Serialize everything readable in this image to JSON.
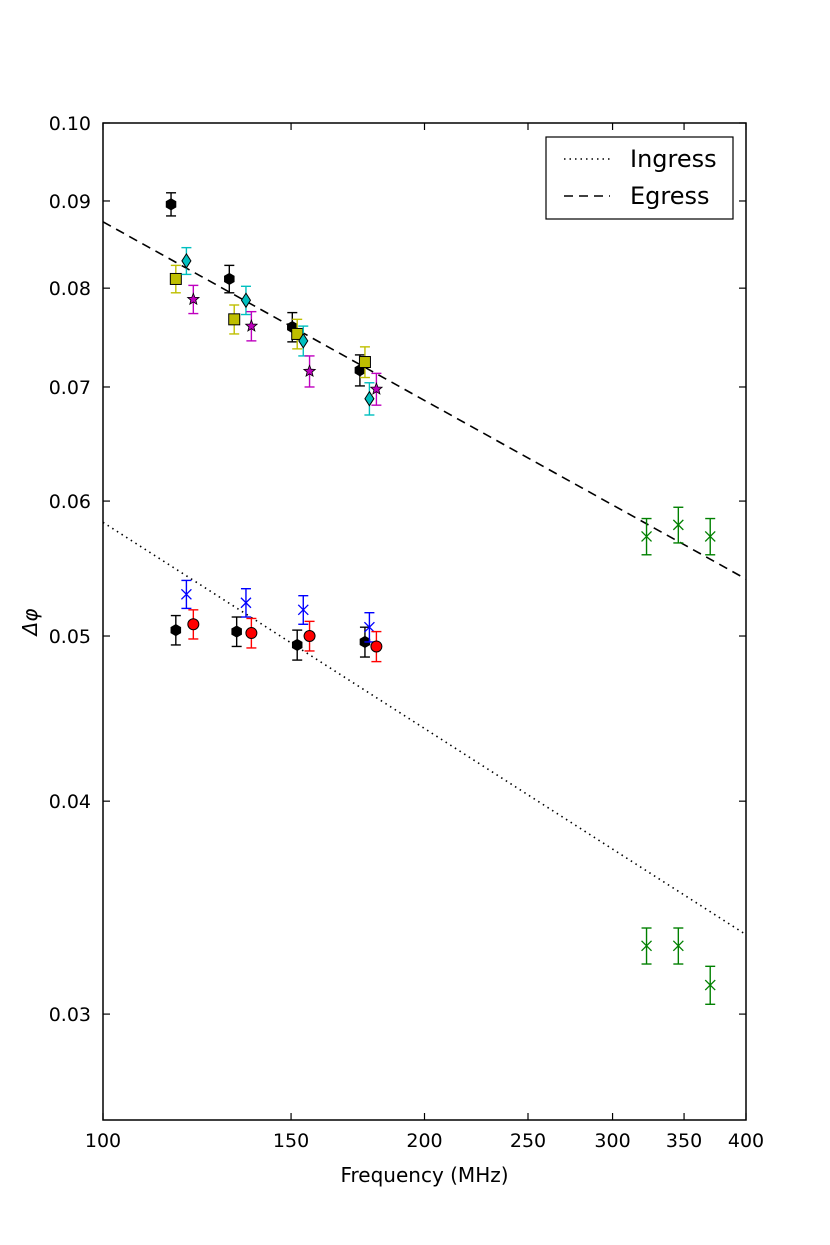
{
  "chart_data": {
    "type": "scatter",
    "title": "",
    "xlabel": "Frequency (MHz)",
    "ylabel": "Δφ",
    "xscale": "log",
    "yscale": "log",
    "xlim": [
      100,
      400
    ],
    "ylim": [
      0.026,
      0.1
    ],
    "grid": false,
    "legend_position": "top-right",
    "x_ticks": [
      {
        "value": 100,
        "label": "100"
      },
      {
        "value": 150,
        "label": "150"
      },
      {
        "value": 200,
        "label": "200"
      },
      {
        "value": 250,
        "label": "250"
      },
      {
        "value": 300,
        "label": "300"
      },
      {
        "value": 350,
        "label": "350"
      },
      {
        "value": 400,
        "label": "400"
      }
    ],
    "y_ticks": [
      {
        "value": 0.03,
        "label": "0.03"
      },
      {
        "value": 0.04,
        "label": "0.04"
      },
      {
        "value": 0.05,
        "label": "0.05"
      },
      {
        "value": 0.06,
        "label": "0.06"
      },
      {
        "value": 0.07,
        "label": "0.07"
      },
      {
        "value": 0.08,
        "label": "0.08"
      },
      {
        "value": 0.09,
        "label": "0.09"
      },
      {
        "value": 0.1,
        "label": "0.10"
      }
    ],
    "lines": [
      {
        "name": "Ingress",
        "style": "dotted",
        "color": "#000000",
        "x": [
          100,
          400
        ],
        "y": [
          0.0583,
          0.0334
        ]
      },
      {
        "name": "Egress",
        "style": "dashed",
        "color": "#000000",
        "x": [
          100,
          400
        ],
        "y": [
          0.0875,
          0.054
        ]
      }
    ],
    "series": [
      {
        "marker": "hexagon",
        "color": "#000000",
        "points": [
          {
            "x": 115.8,
            "y": 0.0896,
            "err": 0.0014
          },
          {
            "x": 131.3,
            "y": 0.081,
            "err": 0.0015
          },
          {
            "x": 150.4,
            "y": 0.0759,
            "err": 0.0015
          },
          {
            "x": 174.0,
            "y": 0.0716,
            "err": 0.0015
          }
        ]
      },
      {
        "marker": "square",
        "color": "#bfbf00",
        "points": [
          {
            "x": 117.0,
            "y": 0.081,
            "err": 0.0015
          },
          {
            "x": 132.7,
            "y": 0.0767,
            "err": 0.0015
          },
          {
            "x": 152.0,
            "y": 0.0752,
            "err": 0.0015
          },
          {
            "x": 175.9,
            "y": 0.0724,
            "err": 0.0015
          }
        ]
      },
      {
        "marker": "diamond",
        "color": "#00bfbf",
        "points": [
          {
            "x": 119.7,
            "y": 0.083,
            "err": 0.0015
          },
          {
            "x": 136.1,
            "y": 0.0787,
            "err": 0.0015
          },
          {
            "x": 154.0,
            "y": 0.0745,
            "err": 0.0015
          },
          {
            "x": 177.6,
            "y": 0.0689,
            "err": 0.0015
          }
        ]
      },
      {
        "marker": "star",
        "color": "#bf00bf",
        "points": [
          {
            "x": 121.5,
            "y": 0.0788,
            "err": 0.0015
          },
          {
            "x": 137.7,
            "y": 0.076,
            "err": 0.0015
          },
          {
            "x": 156.1,
            "y": 0.0715,
            "err": 0.0015
          },
          {
            "x": 180.3,
            "y": 0.0698,
            "err": 0.0015
          }
        ]
      },
      {
        "marker": "hexagon",
        "color": "#000000",
        "points": [
          {
            "x": 117.0,
            "y": 0.0504,
            "err": 0.001
          },
          {
            "x": 133.4,
            "y": 0.0503,
            "err": 0.001
          },
          {
            "x": 152.0,
            "y": 0.0494,
            "err": 0.001
          },
          {
            "x": 175.9,
            "y": 0.0496,
            "err": 0.001
          }
        ]
      },
      {
        "marker": "x",
        "color": "#0000ff",
        "points": [
          {
            "x": 119.7,
            "y": 0.0529,
            "err": 0.001
          },
          {
            "x": 136.1,
            "y": 0.0523,
            "err": 0.001
          },
          {
            "x": 154.0,
            "y": 0.0518,
            "err": 0.001
          },
          {
            "x": 177.6,
            "y": 0.0506,
            "err": 0.001
          }
        ]
      },
      {
        "marker": "circle",
        "color": "#ff0000",
        "points": [
          {
            "x": 121.5,
            "y": 0.0508,
            "err": 0.001
          },
          {
            "x": 137.7,
            "y": 0.0502,
            "err": 0.001
          },
          {
            "x": 156.1,
            "y": 0.05,
            "err": 0.001
          },
          {
            "x": 180.3,
            "y": 0.0493,
            "err": 0.001
          }
        ]
      },
      {
        "marker": "x",
        "color": "#008000",
        "points": [
          {
            "x": 322.8,
            "y": 0.0572,
            "err": 0.0014
          },
          {
            "x": 345.7,
            "y": 0.0581,
            "err": 0.0014
          },
          {
            "x": 370.3,
            "y": 0.0572,
            "err": 0.0014
          },
          {
            "x": 322.8,
            "y": 0.0329,
            "err": 0.0008
          },
          {
            "x": 345.7,
            "y": 0.0329,
            "err": 0.0008
          },
          {
            "x": 370.3,
            "y": 0.0312,
            "err": 0.0008
          }
        ]
      }
    ],
    "legend": {
      "entries": [
        {
          "label": "Ingress",
          "style": "dotted"
        },
        {
          "label": "Egress",
          "style": "dashed"
        }
      ]
    }
  }
}
